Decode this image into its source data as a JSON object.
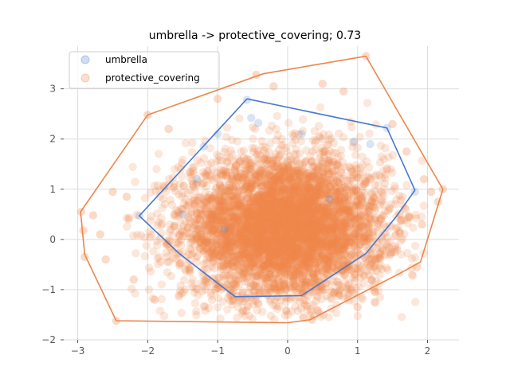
{
  "chart_data": {
    "type": "scatter",
    "title": "umbrella -> protective_covering; 0.73",
    "xlabel": "",
    "ylabel": "",
    "xlim": [
      -3.2,
      2.45
    ],
    "ylim": [
      -2.0,
      3.85
    ],
    "xticks": [
      -3,
      -2,
      -1,
      0,
      1,
      2
    ],
    "yticks": [
      -2,
      -1,
      0,
      1,
      2,
      3
    ],
    "xtick_labels": [
      "−3",
      "−2",
      "−1",
      "0",
      "1",
      "2"
    ],
    "ytick_labels": [
      "−2",
      "−1",
      "0",
      "1",
      "2",
      "3"
    ],
    "grid": true,
    "legend_position": "top-left",
    "series": [
      {
        "name": "umbrella",
        "color": "#4878cf",
        "point_alpha": 0.2,
        "points": [
          [
            -2.12,
            0.47
          ],
          [
            -0.58,
            2.78
          ],
          [
            -0.52,
            2.42
          ],
          [
            -0.42,
            2.32
          ],
          [
            -1.0,
            2.1
          ],
          [
            -1.2,
            1.85
          ],
          [
            1.42,
            2.22
          ],
          [
            1.18,
            1.9
          ],
          [
            0.95,
            1.95
          ],
          [
            1.82,
            0.95
          ],
          [
            0.2,
            2.1
          ],
          [
            -1.3,
            1.2
          ],
          [
            -1.5,
            0.5
          ],
          [
            -0.9,
            0.2
          ],
          [
            0.6,
            0.8
          ]
        ],
        "hull": [
          [
            -0.58,
            2.8
          ],
          [
            1.42,
            2.22
          ],
          [
            1.82,
            0.98
          ],
          [
            1.55,
            0.45
          ],
          [
            1.12,
            -0.28
          ],
          [
            0.2,
            -1.12
          ],
          [
            -0.75,
            -1.14
          ],
          [
            -1.55,
            -0.28
          ],
          [
            -2.12,
            0.47
          ],
          [
            -0.58,
            2.8
          ]
        ]
      },
      {
        "name": "protective_covering",
        "color": "#ee854a",
        "point_alpha": 0.2,
        "cloud": {
          "center": [
            -0.05,
            0.25
          ],
          "spread": [
            0.72,
            0.72
          ],
          "count": 5200
        },
        "extreme_points": [
          [
            1.12,
            3.65
          ],
          [
            -0.45,
            3.28
          ],
          [
            -2.0,
            2.48
          ],
          [
            2.22,
            1.0
          ],
          [
            -2.95,
            0.55
          ],
          [
            -2.78,
            0.48
          ],
          [
            -2.92,
            0.18
          ],
          [
            -2.9,
            -0.35
          ],
          [
            -2.45,
            -1.62
          ],
          [
            0.35,
            -1.6
          ],
          [
            1.85,
            -0.55
          ],
          [
            1.92,
            0.3
          ],
          [
            2.05,
            0.95
          ],
          [
            1.95,
            1.2
          ],
          [
            1.7,
            1.75
          ],
          [
            0.5,
            3.1
          ],
          [
            -1.0,
            2.8
          ],
          [
            -1.7,
            2.2
          ],
          [
            -2.3,
            0.85
          ],
          [
            -2.6,
            -0.4
          ],
          [
            -2.5,
            0.95
          ],
          [
            -2.2,
            -0.8
          ],
          [
            -1.9,
            -1.2
          ],
          [
            1.25,
            -1.05
          ],
          [
            1.5,
            2.3
          ],
          [
            0.8,
            2.95
          ],
          [
            -0.2,
            3.05
          ],
          [
            2.15,
            0.75
          ],
          [
            -2.68,
            0.1
          ],
          [
            1.0,
            -1.35
          ]
        ],
        "hull": [
          [
            1.12,
            3.65
          ],
          [
            2.22,
            1.0
          ],
          [
            1.9,
            -0.45
          ],
          [
            1.6,
            -0.68
          ],
          [
            0.32,
            -1.6
          ],
          [
            0.0,
            -1.66
          ],
          [
            -2.45,
            -1.62
          ],
          [
            -2.9,
            -0.3
          ],
          [
            -2.96,
            0.55
          ],
          [
            -2.0,
            2.48
          ],
          [
            -0.35,
            3.3
          ],
          [
            1.12,
            3.65
          ]
        ]
      }
    ]
  }
}
